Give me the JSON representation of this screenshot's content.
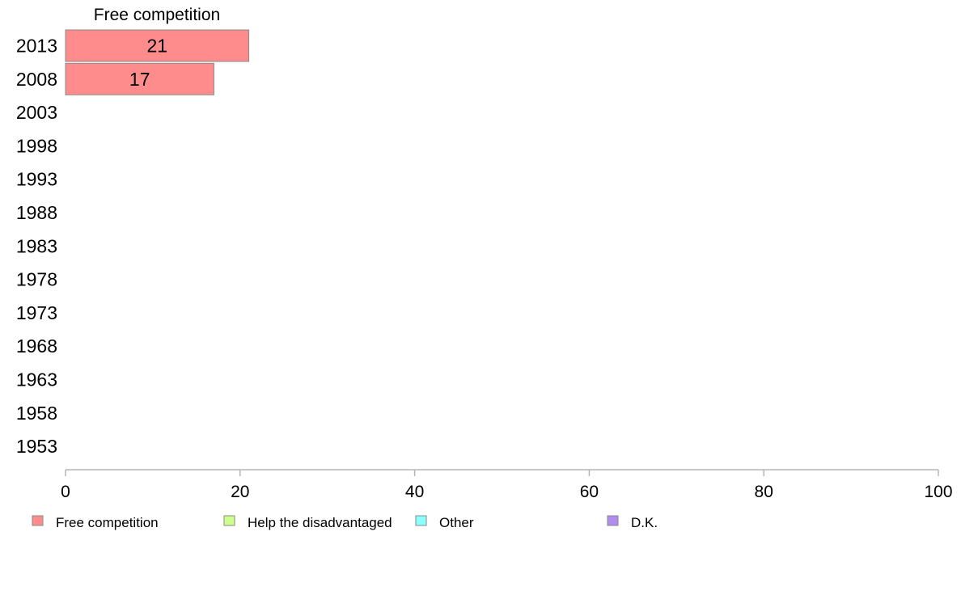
{
  "chart_data": {
    "type": "bar",
    "orientation": "horizontal",
    "stacked": true,
    "categories": [
      "2013",
      "2008",
      "2003",
      "1998",
      "1993",
      "1988",
      "1983",
      "1978",
      "1973",
      "1968",
      "1963",
      "1958",
      "1953"
    ],
    "column_header": "Free competition",
    "series": [
      {
        "name": "Free competition",
        "color": "#ff8c8c",
        "values": [
          21,
          17,
          null,
          null,
          null,
          null,
          null,
          null,
          null,
          null,
          null,
          null,
          null
        ],
        "labels": [
          "21",
          "17",
          "",
          "",
          "",
          "",
          "",
          "",
          "",
          "",
          "",
          "",
          ""
        ]
      },
      {
        "name": "Help the disadvantaged",
        "color": "#ccff8c",
        "values": [
          null,
          null,
          null,
          null,
          null,
          null,
          null,
          null,
          null,
          null,
          null,
          null,
          null
        ]
      },
      {
        "name": "Other",
        "color": "#8cffff",
        "values": [
          null,
          null,
          null,
          null,
          null,
          null,
          null,
          null,
          null,
          null,
          null,
          null,
          null
        ]
      },
      {
        "name": "D.K.",
        "color": "#b38cf0",
        "values": [
          null,
          null,
          null,
          null,
          null,
          null,
          null,
          null,
          null,
          null,
          null,
          null,
          null
        ]
      }
    ],
    "xlim": [
      0,
      100
    ],
    "xticks": [
      0,
      20,
      40,
      60,
      80,
      100
    ],
    "xtick_labels": [
      "0",
      "20",
      "40",
      "60",
      "80",
      "100"
    ],
    "grid": false,
    "legend_position": "bottom"
  }
}
